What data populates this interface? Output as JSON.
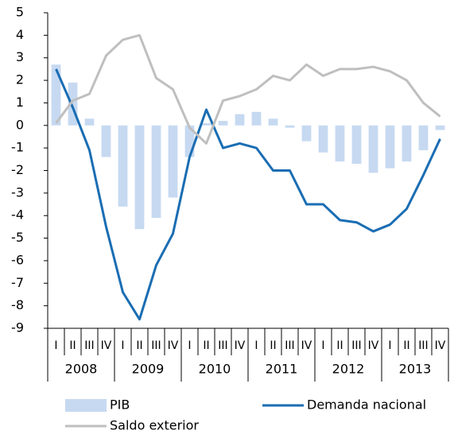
{
  "chart_data": {
    "type": "combo",
    "categories": [
      "I",
      "II",
      "III",
      "IV",
      "I",
      "II",
      "III",
      "IV",
      "I",
      "II",
      "III",
      "IV",
      "I",
      "II",
      "III",
      "IV",
      "I",
      "II",
      "III",
      "IV",
      "I",
      "II",
      "III",
      "IV"
    ],
    "groups": [
      "2008",
      "2009",
      "2010",
      "2011",
      "2012",
      "2013"
    ],
    "series": [
      {
        "name": "PIB",
        "type": "bar",
        "color": "#c6d9f1",
        "values": [
          2.7,
          1.9,
          0.3,
          -1.4,
          -3.6,
          -4.6,
          -4.1,
          -3.2,
          -1.4,
          0.1,
          0.2,
          0.5,
          0.6,
          0.3,
          -0.1,
          -0.7,
          -1.2,
          -1.6,
          -1.7,
          -2.1,
          -1.9,
          -1.6,
          -1.1,
          -0.2
        ]
      },
      {
        "name": "Demanda nacional",
        "type": "line",
        "color": "#1a6db3",
        "values": [
          2.5,
          0.8,
          -1.1,
          -4.5,
          -7.4,
          -8.6,
          -6.2,
          -4.8,
          -1.4,
          0.7,
          -1.0,
          -0.8,
          -1.0,
          -2.0,
          -2.0,
          -3.5,
          -3.5,
          -4.2,
          -4.3,
          -4.7,
          -4.4,
          -3.7,
          -2.2,
          -0.6
        ]
      },
      {
        "name": "Saldo exterior",
        "type": "line",
        "color": "#bfbfbf",
        "values": [
          0.1,
          1.1,
          1.4,
          3.1,
          3.8,
          4.0,
          2.1,
          1.6,
          -0.1,
          -0.8,
          1.1,
          1.3,
          1.6,
          2.2,
          2.0,
          2.7,
          2.2,
          2.5,
          2.5,
          2.6,
          2.4,
          2.0,
          1.0,
          0.4
        ]
      }
    ],
    "ylim": [
      -9,
      5
    ],
    "yticks": [
      -9,
      -8,
      -7,
      -6,
      -5,
      -4,
      -3,
      -2,
      -1,
      0,
      1,
      2,
      3,
      4,
      5
    ],
    "legend": "bottom"
  }
}
